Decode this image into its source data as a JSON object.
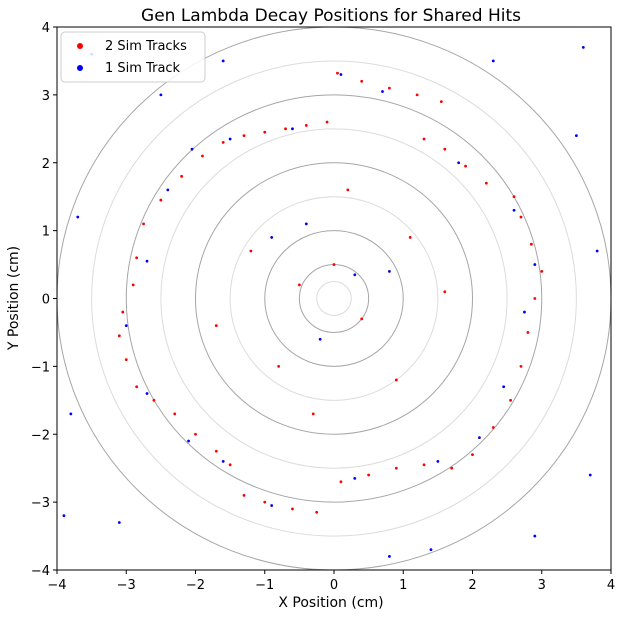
{
  "chart_data": {
    "type": "scatter",
    "title": "Gen Lambda Decay Positions for Shared Hits",
    "xlabel": "X Position (cm)",
    "ylabel": "Y Position (cm)",
    "xlim": [
      -4,
      4
    ],
    "ylim": [
      -4,
      4
    ],
    "xticks": [
      -4,
      -3,
      -2,
      -1,
      0,
      1,
      2,
      3,
      4
    ],
    "yticks": [
      -4,
      -3,
      -2,
      -1,
      0,
      1,
      2,
      3,
      4
    ],
    "x_tick_labels": [
      "−4",
      "−3",
      "−2",
      "−1",
      "0",
      "1",
      "2",
      "3",
      "4"
    ],
    "y_tick_labels": [
      "−4",
      "−3",
      "−2",
      "−1",
      "0",
      "1",
      "2",
      "3",
      "4"
    ],
    "grid": false,
    "legend_position": "top-left",
    "reference_circles": {
      "dark_radii": [
        0.5,
        1.0,
        2.0,
        3.0,
        4.0
      ],
      "light_radii": [
        0.25,
        1.5,
        2.5,
        3.5
      ],
      "dark_color": "#a6a6a6",
      "light_color": "#dcdcdc"
    },
    "series": [
      {
        "name": "2 Sim Tracks",
        "color": "#ff0000",
        "points": [
          [
            0.05,
            3.32
          ],
          [
            0.4,
            3.2
          ],
          [
            0.8,
            3.1
          ],
          [
            1.2,
            3.0
          ],
          [
            1.55,
            2.9
          ],
          [
            -0.1,
            2.6
          ],
          [
            -0.4,
            2.55
          ],
          [
            -0.7,
            2.5
          ],
          [
            -1.0,
            2.45
          ],
          [
            -1.3,
            2.4
          ],
          [
            -1.6,
            2.3
          ],
          [
            -1.9,
            2.1
          ],
          [
            -2.2,
            1.8
          ],
          [
            -2.5,
            1.45
          ],
          [
            -2.75,
            1.1
          ],
          [
            -2.85,
            0.6
          ],
          [
            -2.9,
            0.2
          ],
          [
            -3.05,
            -0.2
          ],
          [
            -3.1,
            -0.55
          ],
          [
            -3.0,
            -0.9
          ],
          [
            -2.85,
            -1.3
          ],
          [
            -2.6,
            -1.5
          ],
          [
            -2.3,
            -1.7
          ],
          [
            -2.0,
            -2.0
          ],
          [
            -1.7,
            -2.25
          ],
          [
            -1.5,
            -2.45
          ],
          [
            -1.3,
            -2.9
          ],
          [
            -1.0,
            -3.0
          ],
          [
            -0.6,
            -3.1
          ],
          [
            -0.25,
            -3.15
          ],
          [
            0.1,
            -2.7
          ],
          [
            0.5,
            -2.6
          ],
          [
            0.9,
            -2.5
          ],
          [
            1.3,
            -2.45
          ],
          [
            1.7,
            -2.5
          ],
          [
            2.0,
            -2.3
          ],
          [
            2.3,
            -1.9
          ],
          [
            2.55,
            -1.5
          ],
          [
            2.7,
            -1.0
          ],
          [
            2.8,
            -0.5
          ],
          [
            2.9,
            0.0
          ],
          [
            3.0,
            0.4
          ],
          [
            2.85,
            0.8
          ],
          [
            2.7,
            1.2
          ],
          [
            2.6,
            1.5
          ],
          [
            2.2,
            1.7
          ],
          [
            1.9,
            1.95
          ],
          [
            1.6,
            2.2
          ],
          [
            1.3,
            2.35
          ],
          [
            0.0,
            0.5
          ],
          [
            -0.5,
            0.2
          ],
          [
            0.4,
            -0.3
          ],
          [
            -1.2,
            0.7
          ],
          [
            1.1,
            0.9
          ],
          [
            -0.8,
            -1.0
          ],
          [
            0.9,
            -1.2
          ],
          [
            1.6,
            0.1
          ],
          [
            -1.7,
            -0.4
          ],
          [
            0.2,
            1.6
          ],
          [
            -0.3,
            -1.7
          ]
        ]
      },
      {
        "name": "1 Sim Track",
        "color": "#0000ff",
        "points": [
          [
            0.1,
            3.3
          ],
          [
            0.7,
            3.05
          ],
          [
            -0.6,
            2.5
          ],
          [
            -1.5,
            2.35
          ],
          [
            -2.05,
            2.2
          ],
          [
            -2.4,
            1.6
          ],
          [
            -2.7,
            0.55
          ],
          [
            -3.0,
            -0.4
          ],
          [
            -2.7,
            -1.4
          ],
          [
            -2.1,
            -2.1
          ],
          [
            -1.6,
            -2.4
          ],
          [
            -0.9,
            -3.05
          ],
          [
            0.3,
            -2.65
          ],
          [
            1.5,
            -2.4
          ],
          [
            2.1,
            -2.05
          ],
          [
            2.45,
            -1.3
          ],
          [
            2.75,
            -0.2
          ],
          [
            2.9,
            0.5
          ],
          [
            2.6,
            1.3
          ],
          [
            1.8,
            2.0
          ],
          [
            -3.5,
            3.6
          ],
          [
            3.6,
            3.7
          ],
          [
            -3.8,
            -1.7
          ],
          [
            3.7,
            -2.6
          ],
          [
            -3.1,
            -3.3
          ],
          [
            2.9,
            -3.5
          ],
          [
            0.3,
            0.35
          ],
          [
            -0.2,
            -0.6
          ],
          [
            0.8,
            0.4
          ],
          [
            -0.9,
            0.9
          ],
          [
            3.5,
            2.4
          ],
          [
            -3.7,
            1.2
          ],
          [
            0.8,
            -3.8
          ],
          [
            -1.6,
            3.5
          ],
          [
            3.8,
            0.7
          ],
          [
            -2.5,
            3.0
          ],
          [
            2.3,
            3.5
          ],
          [
            -3.9,
            -3.2
          ],
          [
            1.4,
            -3.7
          ],
          [
            -0.4,
            1.1
          ]
        ]
      }
    ]
  }
}
